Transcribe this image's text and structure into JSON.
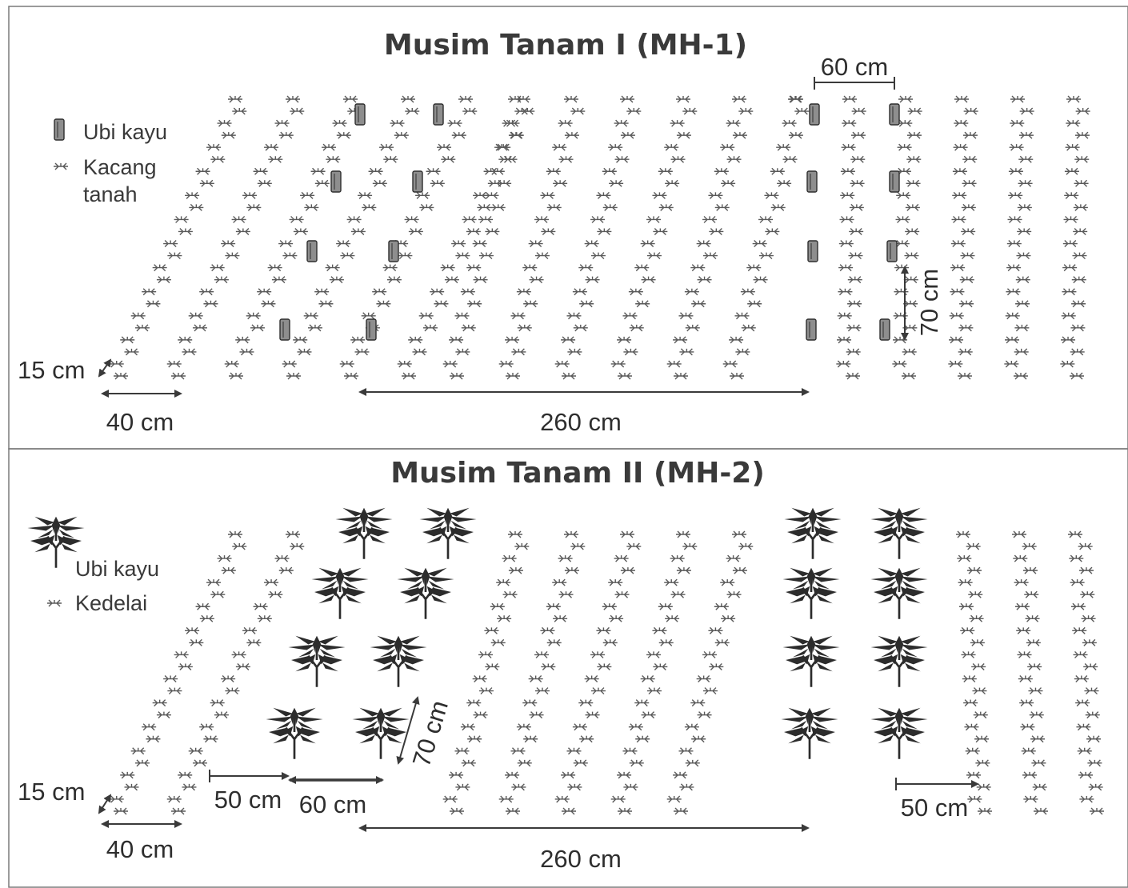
{
  "panels": [
    {
      "title": "Musim Tanam I (MH-1)",
      "legend": [
        {
          "symbol": "tuber",
          "label_lines": [
            "Ubi kayu"
          ]
        },
        {
          "symbol": "seedling",
          "label_lines": [
            "Kacang",
            "tanah"
          ]
        }
      ],
      "dimensions": {
        "row_spacing": "15 cm",
        "bed_spacing": "40 cm",
        "block_width": "260 cm",
        "cassava_row_gap": "60 cm",
        "cassava_plant_gap": "70 cm"
      }
    },
    {
      "title": "Musim Tanam II (MH-2)",
      "legend": [
        {
          "symbol": "cassava",
          "label_lines": [
            "Ubi kayu"
          ]
        },
        {
          "symbol": "seedling",
          "label_lines": [
            "Kedelai"
          ]
        }
      ],
      "dimensions": {
        "row_spacing": "15 cm",
        "bed_spacing": "40 cm",
        "left_gap": "50 cm",
        "cassava_row_gap": "60 cm",
        "cassava_plant_gap": "70 cm",
        "block_width": "260 cm",
        "right_gap": "50 cm"
      }
    }
  ],
  "colors": {
    "ink": "#2e2e2e",
    "tuber_fill": "#8e8e8e",
    "border": "#7a7a7a"
  }
}
